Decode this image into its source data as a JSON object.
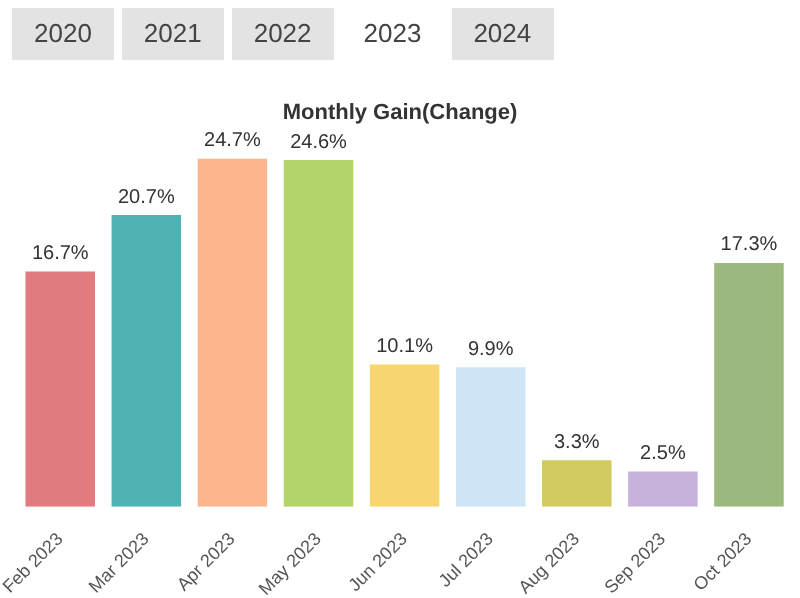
{
  "chart_data": {
    "type": "bar",
    "title": "Monthly Gain(Change)",
    "annotations": [
      "2020",
      "2021",
      "2022",
      "2023",
      "2024"
    ],
    "categories": [
      "Feb 2023",
      "Mar 2023",
      "Apr 2023",
      "May 2023",
      "Jun 2023",
      "Jul 2023",
      "Aug 2023",
      "Sep 2023",
      "Oct 2023"
    ],
    "values": [
      16.7,
      20.7,
      24.7,
      24.6,
      10.1,
      9.9,
      3.3,
      2.5,
      17.3
    ],
    "colors": [
      "#e07b7f",
      "#4fb3b3",
      "#fbb58f",
      "#b2d46a",
      "#f7d66f",
      "#cfe4f7",
      "#d3ca62",
      "#c6b2db",
      "#9bb87f"
    ],
    "value_labels": [
      "16.7%",
      "20.7%",
      "24.7%",
      "24.6%",
      "10.1%",
      "9.9%",
      "3.3%",
      "2.5%",
      "17.3%"
    ],
    "legend": false,
    "grid": false
  }
}
